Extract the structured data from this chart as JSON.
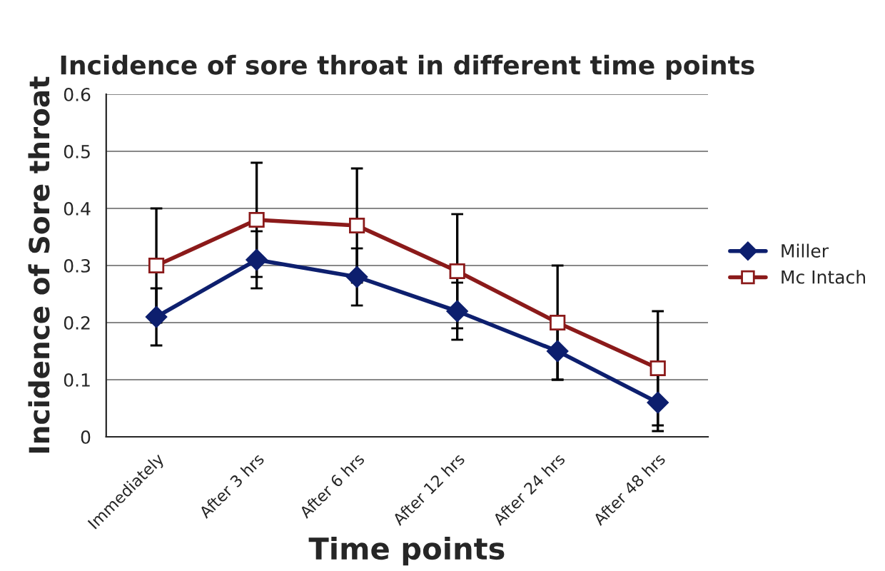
{
  "chart_data": {
    "type": "line",
    "title": "Incidence of sore throat in different time points",
    "xlabel": "Time points",
    "ylabel": "Incidence of Sore throat",
    "categories": [
      "Immediately",
      "After 3 hrs",
      "After 6 hrs",
      "After 12 hrs",
      "After 24 hrs",
      "After 48 hrs"
    ],
    "series": [
      {
        "name": "Miller",
        "color": "#0d1f6e",
        "marker": "diamond",
        "values": [
          0.21,
          0.31,
          0.28,
          0.22,
          0.15,
          0.06
        ],
        "errors": [
          0.05,
          0.05,
          0.05,
          0.05,
          0.05,
          0.05
        ]
      },
      {
        "name": "Mc Intach",
        "color": "#8b1a1a",
        "marker": "square",
        "values": [
          0.3,
          0.38,
          0.37,
          0.29,
          0.2,
          0.12
        ],
        "errors": [
          0.1,
          0.1,
          0.1,
          0.1,
          0.1,
          0.1
        ]
      }
    ],
    "ylim": [
      0,
      0.6
    ],
    "yticks": [
      0,
      0.1,
      0.2,
      0.3,
      0.4,
      0.5,
      0.6
    ],
    "grid": "y",
    "legend": "right"
  }
}
